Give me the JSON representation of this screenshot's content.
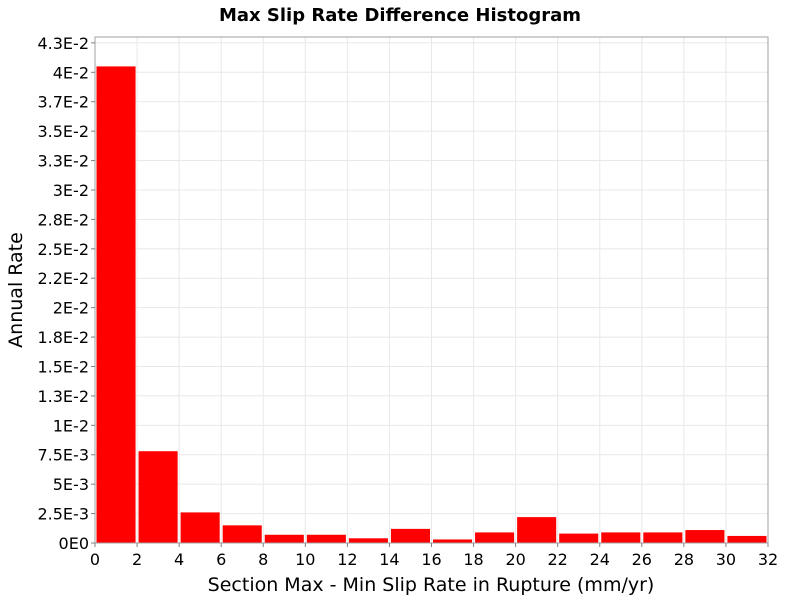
{
  "chart_data": {
    "type": "bar",
    "title": "Max Slip Rate Difference Histogram",
    "xlabel": "Section Max - Min Slip Rate in Rupture (mm/yr)",
    "ylabel": "Annual Rate",
    "xlim": [
      0,
      32
    ],
    "ylim": [
      0,
      0.043
    ],
    "grid": true,
    "colors": {
      "bar": "#ff0000",
      "grid": "#e8e8e8",
      "frame": "#a0a0a0",
      "text": "#000000"
    },
    "x_ticks": [
      0,
      2,
      4,
      6,
      8,
      10,
      12,
      14,
      16,
      18,
      20,
      22,
      24,
      26,
      28,
      30,
      32
    ],
    "y_ticks": [
      {
        "value": 0,
        "label": "0E0"
      },
      {
        "value": 0.0025,
        "label": "2.5E-3"
      },
      {
        "value": 0.005,
        "label": "5E-3"
      },
      {
        "value": 0.0075,
        "label": "7.5E-3"
      },
      {
        "value": 0.01,
        "label": "1E-2"
      },
      {
        "value": 0.0125,
        "label": "1.3E-2"
      },
      {
        "value": 0.015,
        "label": "1.5E-2"
      },
      {
        "value": 0.0175,
        "label": "1.8E-2"
      },
      {
        "value": 0.02,
        "label": "2E-2"
      },
      {
        "value": 0.0225,
        "label": "2.2E-2"
      },
      {
        "value": 0.025,
        "label": "2.5E-2"
      },
      {
        "value": 0.0275,
        "label": "2.8E-2"
      },
      {
        "value": 0.03,
        "label": "3E-2"
      },
      {
        "value": 0.0325,
        "label": "3.3E-2"
      },
      {
        "value": 0.035,
        "label": "3.5E-2"
      },
      {
        "value": 0.0375,
        "label": "3.7E-2"
      },
      {
        "value": 0.04,
        "label": "4E-2"
      },
      {
        "value": 0.0425,
        "label": "4.3E-2"
      }
    ],
    "bins": [
      {
        "start": 0,
        "end": 2,
        "value": 0.0405
      },
      {
        "start": 2,
        "end": 4,
        "value": 0.0078
      },
      {
        "start": 4,
        "end": 6,
        "value": 0.0026
      },
      {
        "start": 6,
        "end": 8,
        "value": 0.0015
      },
      {
        "start": 8,
        "end": 10,
        "value": 0.0007
      },
      {
        "start": 10,
        "end": 12,
        "value": 0.0007
      },
      {
        "start": 12,
        "end": 14,
        "value": 0.0004
      },
      {
        "start": 14,
        "end": 16,
        "value": 0.0012
      },
      {
        "start": 16,
        "end": 18,
        "value": 0.0003
      },
      {
        "start": 18,
        "end": 20,
        "value": 0.0009
      },
      {
        "start": 20,
        "end": 22,
        "value": 0.0022
      },
      {
        "start": 22,
        "end": 24,
        "value": 0.0008
      },
      {
        "start": 24,
        "end": 26,
        "value": 0.0009
      },
      {
        "start": 26,
        "end": 28,
        "value": 0.0009
      },
      {
        "start": 28,
        "end": 30,
        "value": 0.0011
      },
      {
        "start": 30,
        "end": 32,
        "value": 0.0006
      }
    ]
  }
}
